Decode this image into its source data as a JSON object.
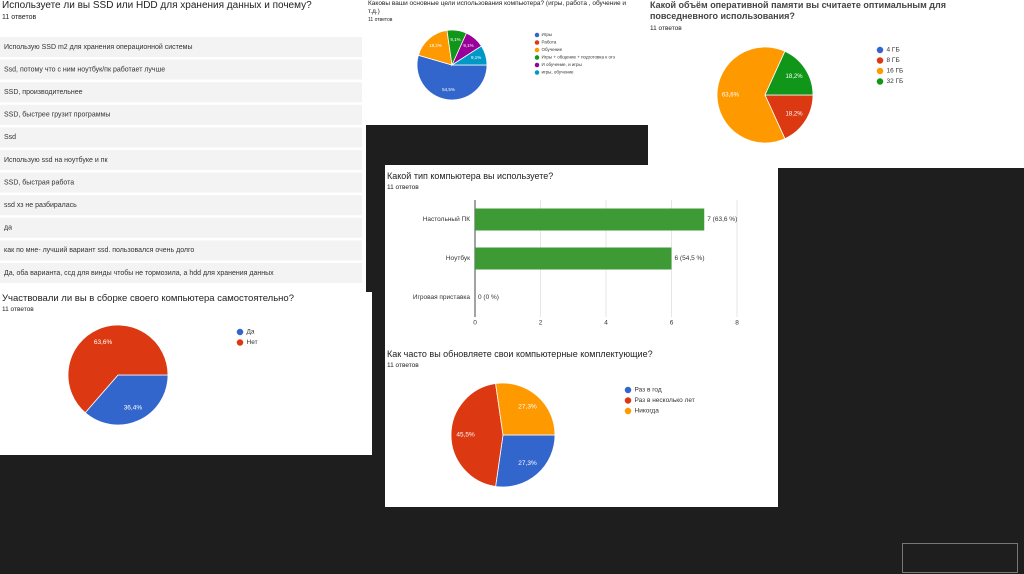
{
  "responses": {
    "title": "Используете ли вы SSD или HDD для хранения данных и почему?",
    "subtitle": "11 ответов",
    "items": [
      "Использую SSD m2 для хранения операционной системы",
      "Ssd, потому что с ним ноутбук/пк работает лучше",
      "SSD, производительнее",
      "SSD, быстрее грузит программы",
      "Ssd",
      "Использую ssd на ноутбуке и пк",
      "SSD, быстрая работа",
      "ssd хз не разбиралась",
      "да",
      "как по мне- лучший вариант ssd. пользовался очень долго",
      "Да, оба варианта, ссд для винды чтобы не тормозила, а hdd для хранения данных"
    ]
  },
  "chart_data": [
    {
      "type": "pie",
      "title": "Каковы ваши основные цели использования компьютера? (игры, работа , обучение и т.д.)",
      "subtitle": "11 ответов",
      "categories": [
        "Игры",
        "Работа",
        "Обучение",
        "Игры + общение + подготовка к огэ",
        "И обучение, и игры",
        "игры, обучение"
      ],
      "values": [
        54.5,
        0,
        18.2,
        9.1,
        9.1,
        9.1
      ],
      "value_labels": [
        "54,5%",
        null,
        "18,2%",
        "9,1%",
        "9,1%",
        "9,1%"
      ],
      "colors": [
        "#3366cc",
        "#dc3912",
        "#ff9900",
        "#109618",
        "#990099",
        "#0099c6"
      ]
    },
    {
      "type": "pie",
      "title": "Какой объём оперативной памяти вы считаете оптимальным для повседневного использования?",
      "subtitle": "11 ответов",
      "categories": [
        "4 ГБ",
        "8 ГБ",
        "16 ГБ",
        "32 ГБ"
      ],
      "values": [
        0,
        18.2,
        63.6,
        18.2
      ],
      "value_labels": [
        null,
        "18,2%",
        "63,6%",
        "18,2%"
      ],
      "colors": [
        "#3366cc",
        "#dc3912",
        "#ff9900",
        "#109618"
      ]
    },
    {
      "type": "hbar",
      "title": "Какой тип компьютера вы используете?",
      "subtitle": "11 ответов",
      "categories": [
        "Настольный ПК",
        "Ноутбук",
        "Игровая приставка"
      ],
      "values": [
        7,
        6,
        0
      ],
      "value_labels": [
        "7 (63,6 %)",
        "6 (54,5 %)",
        "0 (0 %)"
      ],
      "color": "#3d9a35",
      "xlim": [
        0,
        8
      ],
      "xticks": [
        0,
        2,
        4,
        6,
        8
      ]
    },
    {
      "type": "pie",
      "title": "Участвовали ли вы в сборке своего компьютера самостоятельно?",
      "subtitle": "11 ответов",
      "categories": [
        "Да",
        "Нет"
      ],
      "values": [
        36.4,
        63.6
      ],
      "value_labels": [
        "36,4%",
        "63,6%"
      ],
      "colors": [
        "#3366cc",
        "#dc3912"
      ]
    },
    {
      "type": "pie",
      "title": "Как часто вы обновляете свои компьютерные комплектующие?",
      "subtitle": "11 ответов",
      "categories": [
        "Раз в год",
        "Раз в несколько лет",
        "Никогда"
      ],
      "values": [
        27.3,
        45.5,
        27.3
      ],
      "value_labels": [
        "27,3%",
        "45,5%",
        "27,3%"
      ],
      "colors": [
        "#3366cc",
        "#dc3912",
        "#ff9900"
      ]
    }
  ]
}
